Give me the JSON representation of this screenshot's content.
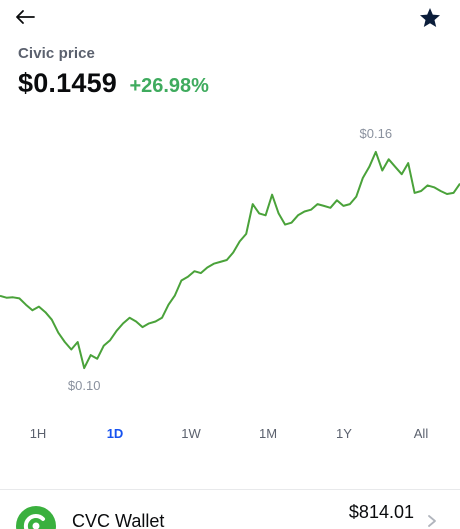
{
  "header": {
    "back_icon": "arrow-left-icon",
    "star_icon": "star-icon"
  },
  "asset": {
    "label": "Civic price",
    "price": "$0.1459",
    "change": "+26.98%"
  },
  "colors": {
    "line": "#4aa23a",
    "positive": "#3fab5e",
    "accent": "#1652f0",
    "muted": "#8a919e"
  },
  "chart_data": {
    "type": "line",
    "high_label": "$0.16",
    "low_label": "$0.10",
    "y_estimates": [
      0.1234,
      0.1229,
      0.123,
      0.1227,
      0.121,
      0.1195,
      0.1205,
      0.119,
      0.117,
      0.1135,
      0.111,
      0.109,
      0.111,
      0.104,
      0.1075,
      0.1065,
      0.11,
      0.1115,
      0.114,
      0.116,
      0.1175,
      0.1165,
      0.115,
      0.116,
      0.1165,
      0.1175,
      0.121,
      0.1235,
      0.1275,
      0.1285,
      0.13,
      0.1295,
      0.131,
      0.132,
      0.1325,
      0.133,
      0.135,
      0.138,
      0.14,
      0.148,
      0.1455,
      0.145,
      0.1505,
      0.1455,
      0.1425,
      0.143,
      0.145,
      0.146,
      0.1465,
      0.148,
      0.1475,
      0.147,
      0.149,
      0.1475,
      0.148,
      0.15,
      0.155,
      0.158,
      0.162,
      0.157,
      0.16,
      0.158,
      0.156,
      0.159,
      0.151,
      0.1515,
      0.153,
      0.1525,
      0.1515,
      0.1507,
      0.151,
      0.1535
    ],
    "high_index": 58,
    "low_index": 13,
    "y_domain": [
      0.1035,
      0.1625
    ]
  },
  "ranges": {
    "items": [
      "1H",
      "1D",
      "1W",
      "1M",
      "1Y",
      "All"
    ],
    "active": "1D"
  },
  "wallet": {
    "icon": "civic-logo-icon",
    "name": "CVC Wallet",
    "balance": "$814.01",
    "chevron_icon": "chevron-right-icon"
  }
}
